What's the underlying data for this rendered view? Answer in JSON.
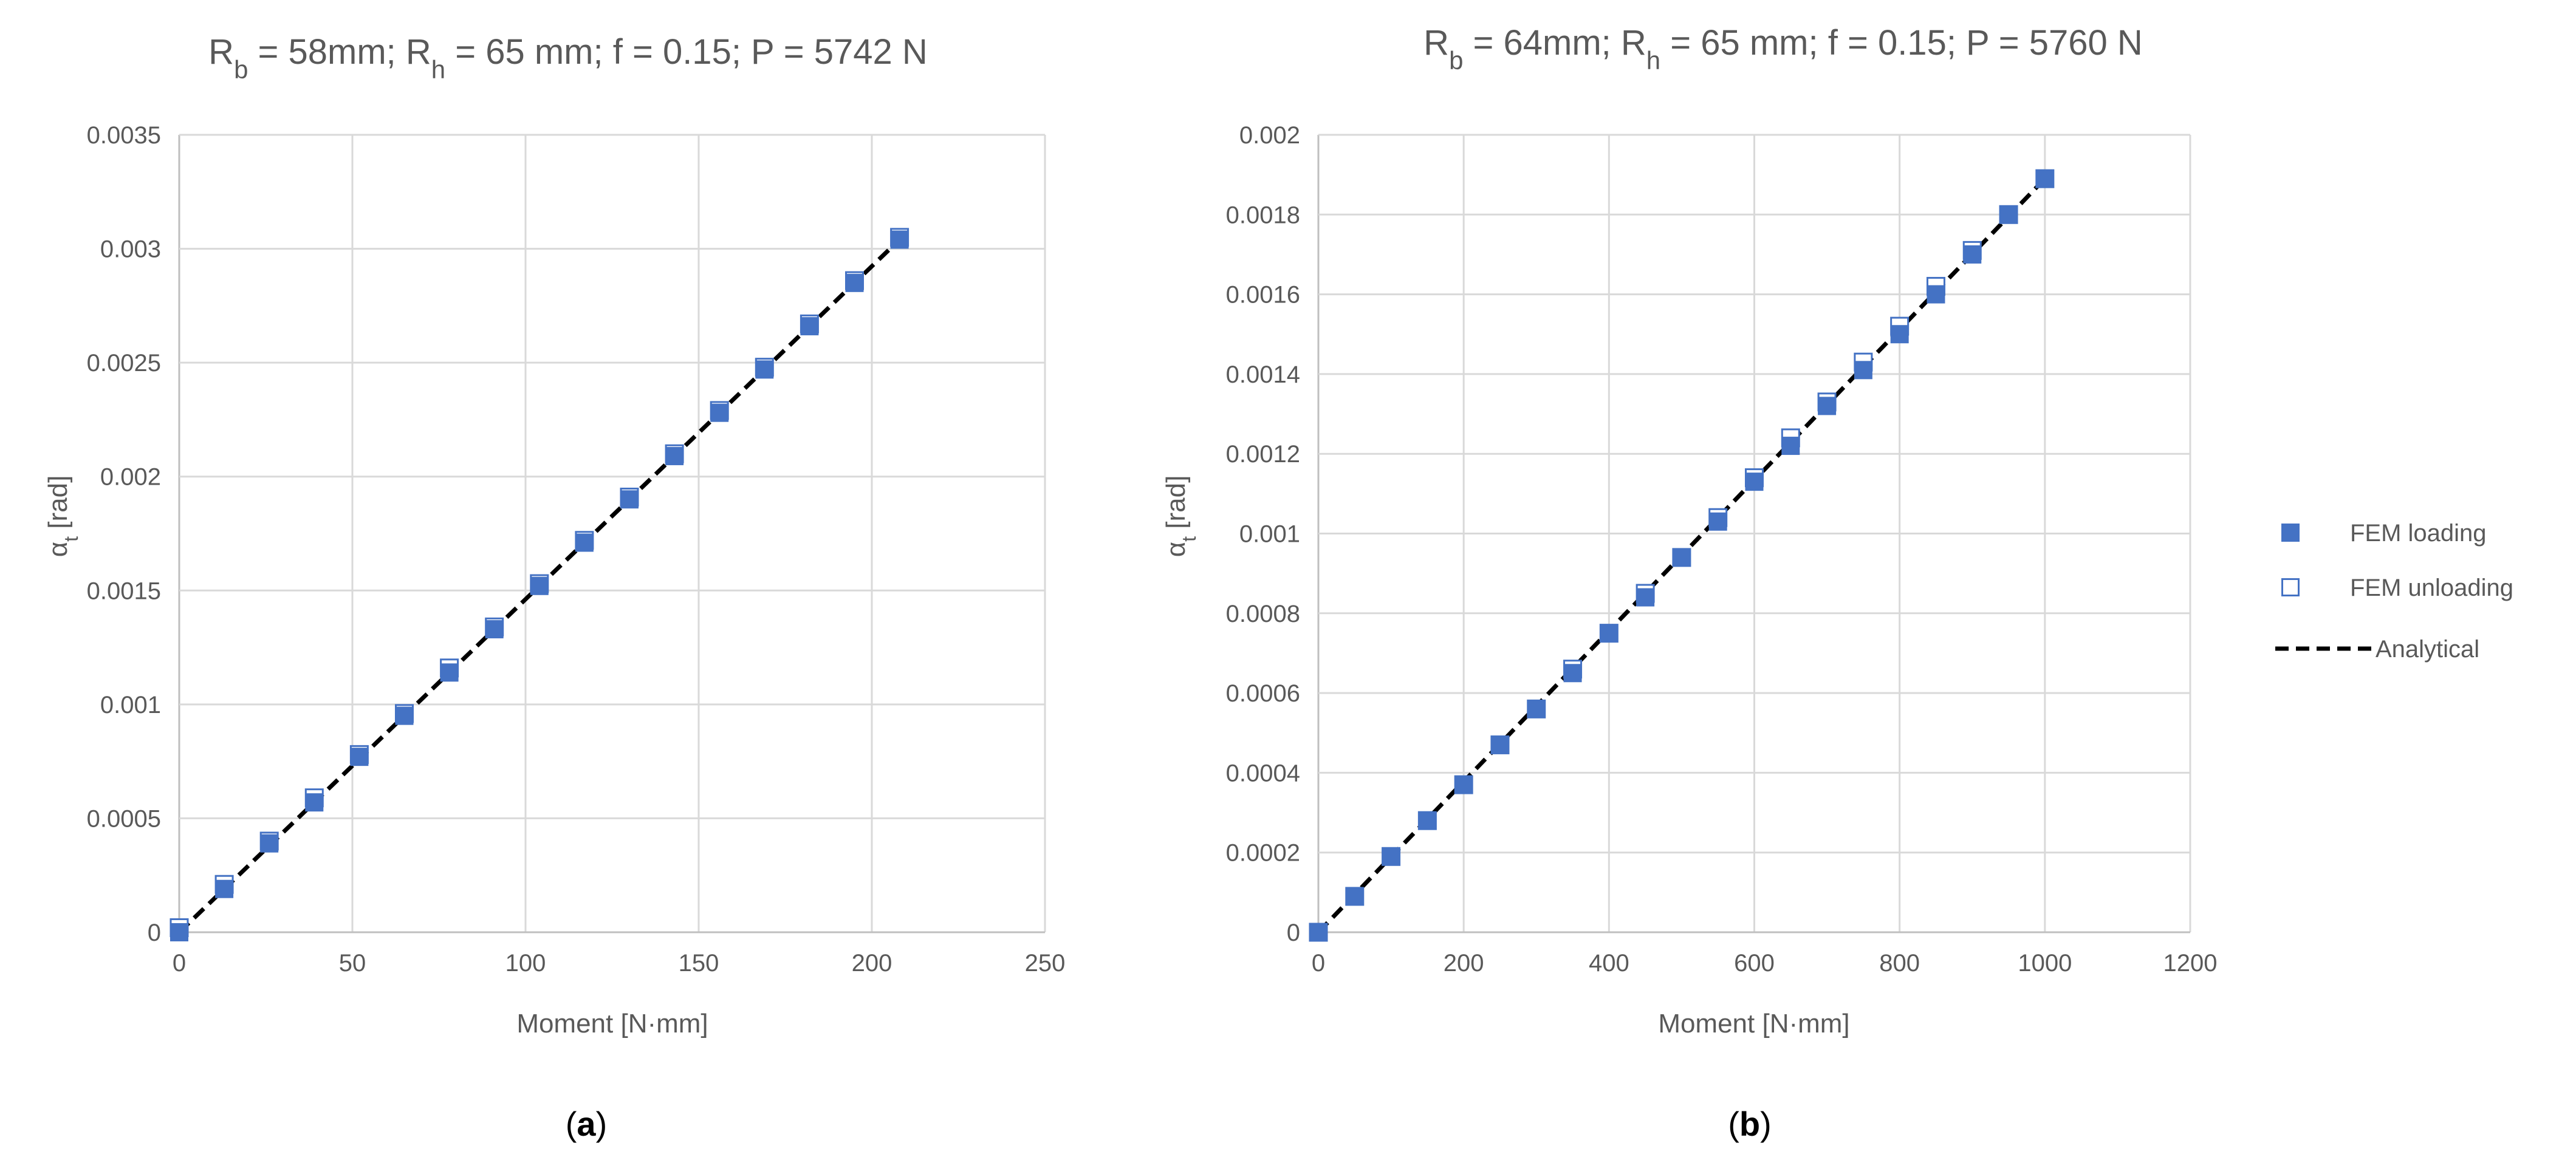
{
  "colors": {
    "series": "#4472C4",
    "analytical": "#000000",
    "grid": "#D9D9D9",
    "text": "#595959"
  },
  "legend": {
    "position": "right",
    "items": [
      {
        "label": "FEM loading",
        "marker": "filled-square"
      },
      {
        "label": "FEM unloading",
        "marker": "open-square"
      },
      {
        "label": "Analytical",
        "marker": "dashed-line"
      }
    ]
  },
  "chart_data": [
    {
      "type": "scatter",
      "title": {
        "a": "R",
        "a_sub": "b",
        "b": " = 58mm; R",
        "b_sub": "h",
        "c": " = 65 mm; f = 0.15; P = 5742 N"
      },
      "caption": {
        "open": "(",
        "letter": "a",
        "close": ")"
      },
      "xlabel": "Moment [N·mm]",
      "ylabel": {
        "symbol": "α",
        "sub": "t",
        "unit": " [rad]"
      },
      "xlim": [
        0,
        250
      ],
      "ylim": [
        0,
        0.0035
      ],
      "grid": true,
      "xticks": [
        0,
        50,
        100,
        150,
        200,
        250
      ],
      "xtick_labels": [
        "0",
        "50",
        "100",
        "150",
        "200",
        "250"
      ],
      "yticks": [
        0,
        0.0005,
        0.001,
        0.0015,
        0.002,
        0.0025,
        0.003,
        0.0035
      ],
      "ytick_labels": [
        "0",
        "0.0005",
        "0.001",
        "0.0015",
        "0.002",
        "0.0025",
        "0.003",
        "0.0035"
      ],
      "series": [
        {
          "name": "FEM loading",
          "x": [
            0,
            13,
            26,
            39,
            52,
            65,
            78,
            91,
            104,
            117,
            130,
            143,
            156,
            169,
            182,
            195,
            208
          ],
          "y": [
            0,
            0.00019,
            0.00039,
            0.00057,
            0.00077,
            0.00095,
            0.00114,
            0.00133,
            0.00152,
            0.00171,
            0.0019,
            0.00209,
            0.00228,
            0.00247,
            0.00266,
            0.00285,
            0.00304
          ]
        },
        {
          "name": "FEM unloading",
          "x": [
            0,
            13,
            26,
            39,
            52,
            65,
            78,
            91,
            104,
            117,
            130,
            143,
            156,
            169,
            182,
            195,
            208
          ],
          "y": [
            2e-05,
            0.00021,
            0.0004,
            0.00059,
            0.00078,
            0.00096,
            0.00116,
            0.00134,
            0.00153,
            0.00172,
            0.00191,
            0.0021,
            0.00229,
            0.00248,
            0.00267,
            0.00286,
            0.00305
          ]
        },
        {
          "name": "Analytical",
          "x": [
            0,
            208
          ],
          "y": [
            0,
            0.00304
          ]
        }
      ]
    },
    {
      "type": "scatter",
      "title": {
        "a": "R",
        "a_sub": "b",
        "b": " = 64mm; R",
        "b_sub": "h",
        "c": " = 65 mm; f = 0.15; P = 5760 N"
      },
      "caption": {
        "open": "(",
        "letter": "b",
        "close": ")"
      },
      "xlabel": "Moment [N·mm]",
      "ylabel": {
        "symbol": "α",
        "sub": "t",
        "unit": " [rad]"
      },
      "xlim": [
        0,
        1200
      ],
      "ylim": [
        0,
        0.002
      ],
      "grid": true,
      "xticks": [
        0,
        200,
        400,
        600,
        800,
        1000,
        1200
      ],
      "xtick_labels": [
        "0",
        "200",
        "400",
        "600",
        "800",
        "1000",
        "1200"
      ],
      "yticks": [
        0,
        0.0002,
        0.0004,
        0.0006,
        0.0008,
        0.001,
        0.0012,
        0.0014,
        0.0016,
        0.0018,
        0.002
      ],
      "ytick_labels": [
        "0",
        "0.0002",
        "0.0004",
        "0.0006",
        "0.0008",
        "0.001",
        "0.0012",
        "0.0014",
        "0.0016",
        "0.0018",
        "0.002"
      ],
      "series": [
        {
          "name": "FEM loading",
          "x": [
            0,
            50,
            100,
            150,
            200,
            250,
            300,
            350,
            400,
            450,
            500,
            550,
            600,
            650,
            700,
            750,
            800,
            850,
            900,
            950,
            1000
          ],
          "y": [
            0,
            9e-05,
            0.00019,
            0.00028,
            0.00037,
            0.00047,
            0.00056,
            0.00065,
            0.00075,
            0.00084,
            0.00094,
            0.00103,
            0.00113,
            0.00122,
            0.00132,
            0.00141,
            0.0015,
            0.0016,
            0.0017,
            0.0018,
            0.00189
          ]
        },
        {
          "name": "FEM unloading",
          "x": [
            0,
            50,
            100,
            150,
            200,
            250,
            300,
            350,
            400,
            450,
            500,
            550,
            600,
            650,
            700,
            750,
            800,
            850,
            900,
            950,
            1000
          ],
          "y": [
            0,
            9e-05,
            0.00019,
            0.00028,
            0.00037,
            0.00047,
            0.00056,
            0.00066,
            0.00075,
            0.00085,
            0.00094,
            0.00104,
            0.00114,
            0.00124,
            0.00133,
            0.00143,
            0.00152,
            0.00162,
            0.00171,
            0.0018,
            0.00189
          ]
        },
        {
          "name": "Analytical",
          "x": [
            0,
            1000
          ],
          "y": [
            0,
            0.00189
          ]
        }
      ]
    }
  ]
}
